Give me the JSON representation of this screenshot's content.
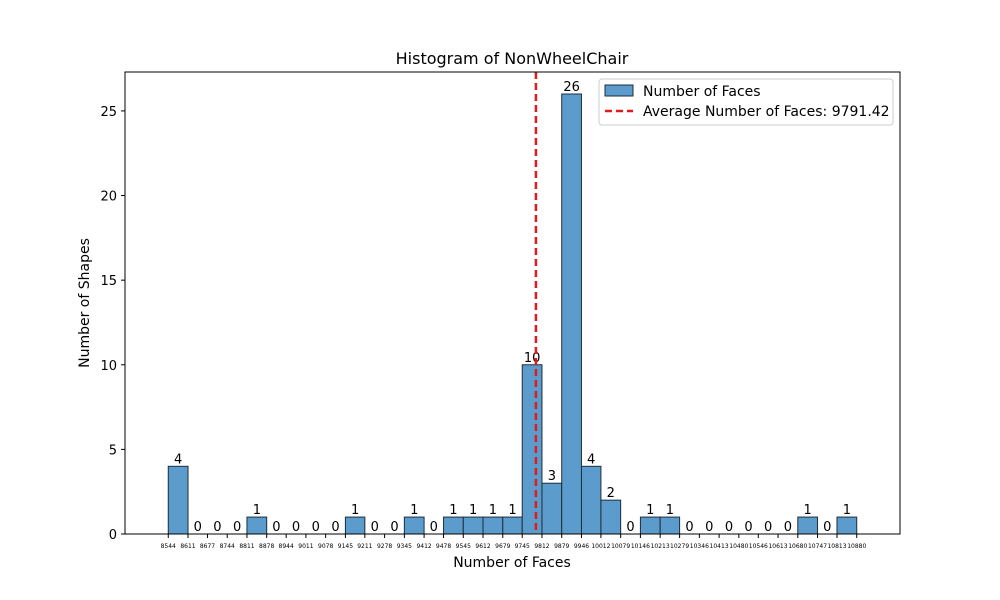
{
  "chart_data": {
    "type": "bar",
    "title": "Histogram of NonWheelChair",
    "xlabel": "Number of Faces",
    "ylabel": "Number of Shapes",
    "x_tick_labels": [
      "8544",
      "8611",
      "8677",
      "8744",
      "8811",
      "8878",
      "8944",
      "9011",
      "9078",
      "9145",
      "9211",
      "9278",
      "9345",
      "9412",
      "9478",
      "9545",
      "9612",
      "9679",
      "9745",
      "9812",
      "9879",
      "9946",
      "10012",
      "10079",
      "10146",
      "10213",
      "10279",
      "10346",
      "10413",
      "10480",
      "10546",
      "10613",
      "10680",
      "10747",
      "10813",
      "10880"
    ],
    "bin_edges": [
      8544,
      8611,
      8677,
      8744,
      8811,
      8878,
      8944,
      9011,
      9078,
      9145,
      9211,
      9278,
      9345,
      9412,
      9478,
      9545,
      9612,
      9679,
      9745,
      9812,
      9879,
      9946,
      10012,
      10079,
      10146,
      10213,
      10279,
      10346,
      10413,
      10480,
      10546,
      10613,
      10680,
      10747,
      10813,
      10880
    ],
    "values": [
      4,
      0,
      0,
      0,
      1,
      0,
      0,
      0,
      0,
      1,
      0,
      0,
      1,
      0,
      1,
      1,
      1,
      1,
      10,
      3,
      26,
      4,
      2,
      0,
      1,
      1,
      0,
      0,
      0,
      0,
      0,
      0,
      1,
      0,
      1
    ],
    "average": 9791.42,
    "xlim": [
      8397.2,
      11026.8
    ],
    "ylim": [
      0,
      27.3
    ],
    "y_ticks": [
      0,
      5,
      10,
      15,
      20,
      25
    ],
    "legend": {
      "placement": "top-right",
      "bar_label": "Number of Faces",
      "line_label": "Average Number of Faces: 9791.42"
    },
    "colors": {
      "bar_fill": "#5b9ccc",
      "bar_edge": "#1f2d3a",
      "average_line": "#e31a1c"
    },
    "grid": false
  }
}
